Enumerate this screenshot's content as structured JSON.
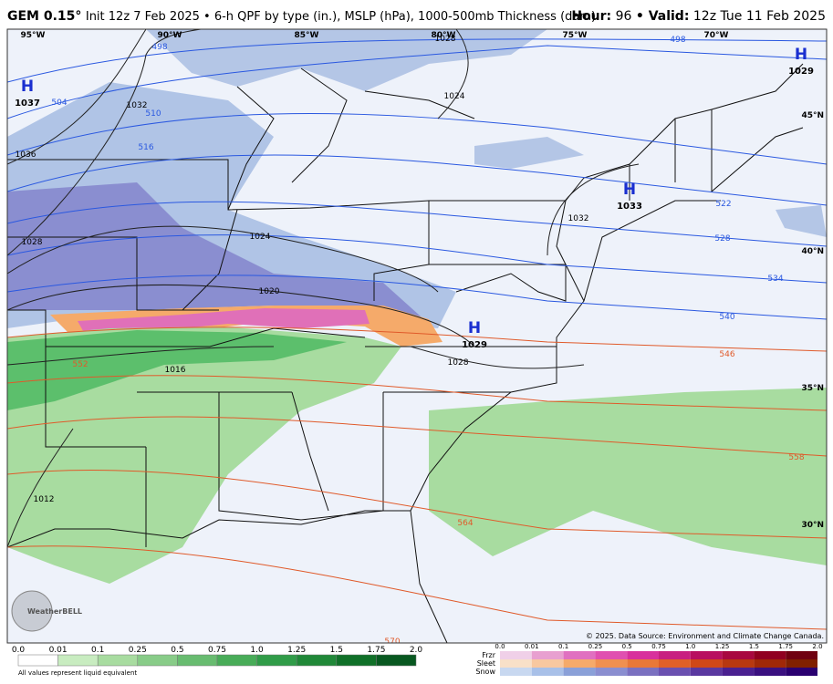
{
  "header": {
    "model": "GEM 0.15°",
    "run": "Init 12z 7 Feb 2025 • 6-h QPF by type (in.), MSLP (hPa), 1000-500mb Thickness (dam)",
    "hour_label": "Hour:",
    "hour": "96",
    "valid_label": "• Valid:",
    "valid": "12z Tue 11 Feb 2025"
  },
  "map": {
    "longitudes": [
      "95°W",
      "90°W",
      "85°W",
      "80°W",
      "75°W",
      "70°W"
    ],
    "latitudes": [
      "45°N",
      "40°N",
      "35°N",
      "30°N"
    ],
    "pressure_centers": [
      {
        "letter": "H",
        "value": "1037"
      },
      {
        "letter": "H",
        "value": "1029"
      },
      {
        "letter": "H",
        "value": "1033"
      },
      {
        "letter": "H",
        "value": "1029"
      }
    ],
    "isobar_labels": [
      "1036",
      "1032",
      "1028",
      "1024",
      "1020",
      "1016",
      "1012",
      "1028",
      "1024",
      "1032",
      "1028"
    ],
    "thickness_labels": [
      "498",
      "504",
      "510",
      "516",
      "522",
      "528",
      "534",
      "540",
      "546",
      "552",
      "558",
      "564",
      "570",
      "498"
    ],
    "credit": "© 2025. Data Source: Environment and Climate Change Canada.",
    "logo": "WeatherBELL"
  },
  "legend": {
    "rain_ticks": [
      "0.0",
      "0.01",
      "0.1",
      "0.25",
      "0.5",
      "0.75",
      "1.0",
      "1.25",
      "1.5",
      "1.75",
      "2.0"
    ],
    "note": "All values represent liquid equivalent",
    "types": [
      "Frzr",
      "Sleet",
      "Snow"
    ],
    "mixed_ticks": [
      "0.0",
      "0.01",
      "0.1",
      "0.25",
      "0.5",
      "0.75",
      "1.0",
      "1.25",
      "1.5",
      "1.75",
      "2.0"
    ]
  }
}
